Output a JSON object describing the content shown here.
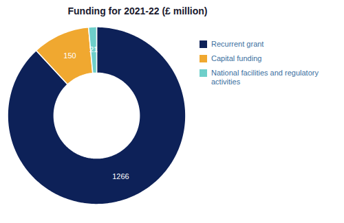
{
  "chart_data": {
    "type": "pie",
    "title": "Funding for 2021-22 (£ million)",
    "categories": [
      "Recurrent grant",
      "Capital funding",
      "National facilities and regulatory activities"
    ],
    "values": [
      1266,
      150,
      21
    ],
    "colors": [
      "#0d2158",
      "#f0a830",
      "#6ecfca"
    ],
    "data_labels": true,
    "legend": "right"
  }
}
